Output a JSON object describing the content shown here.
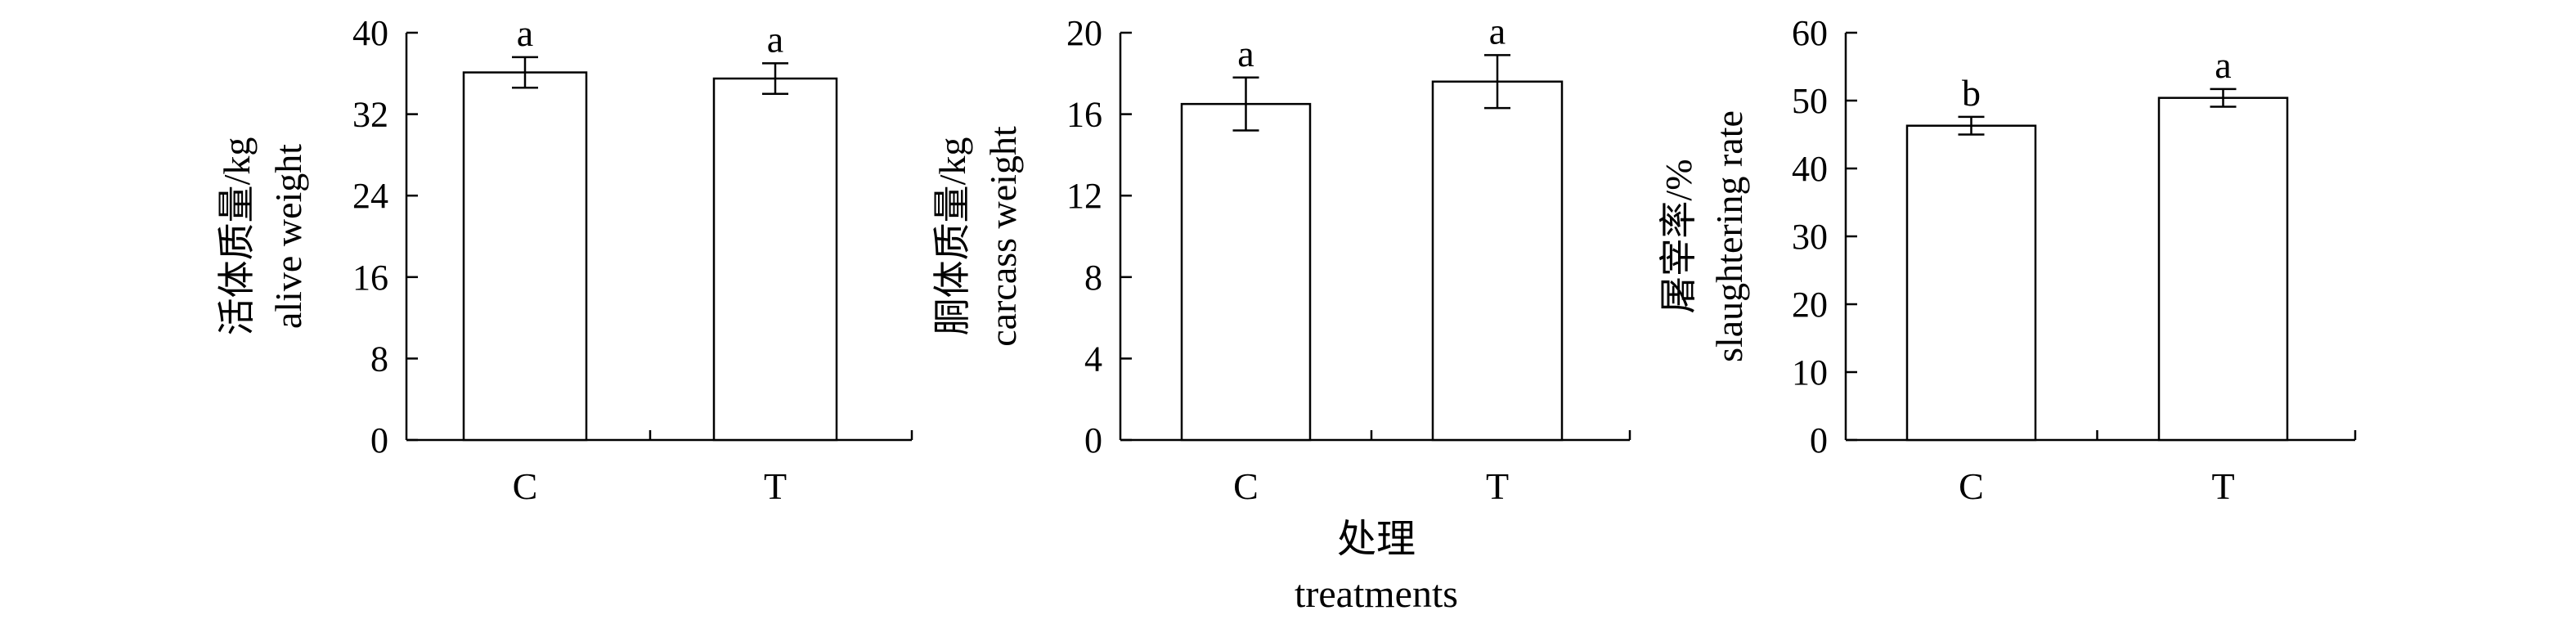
{
  "chart_data": [
    {
      "type": "bar",
      "ylabel_cn": "活体质量/kg",
      "ylabel_en": "alive weight",
      "categories": [
        "C",
        "T"
      ],
      "values": [
        36.1,
        35.5
      ],
      "errors": [
        1.5,
        1.5
      ],
      "significance": [
        "a",
        "a"
      ],
      "ylim": [
        0,
        40
      ],
      "yticks": [
        0,
        8,
        16,
        24,
        32,
        40
      ]
    },
    {
      "type": "bar",
      "ylabel_cn": "胴体质量/kg",
      "ylabel_en": "carcass weight",
      "categories": [
        "C",
        "T"
      ],
      "values": [
        16.5,
        17.6
      ],
      "errors": [
        1.3,
        1.3
      ],
      "significance": [
        "a",
        "a"
      ],
      "ylim": [
        0,
        20
      ],
      "yticks": [
        0,
        4,
        8,
        12,
        16,
        20
      ]
    },
    {
      "type": "bar",
      "ylabel_cn": "屠宰率/%",
      "ylabel_en": "slaughtering rate",
      "categories": [
        "C",
        "T"
      ],
      "values": [
        46.3,
        50.4
      ],
      "errors": [
        1.3,
        1.3
      ],
      "significance": [
        "b",
        "a"
      ],
      "ylim": [
        0,
        60
      ],
      "yticks": [
        0,
        10,
        20,
        30,
        40,
        50,
        60
      ]
    }
  ],
  "xlabel_cn": "处理",
  "xlabel_en": "treatments"
}
